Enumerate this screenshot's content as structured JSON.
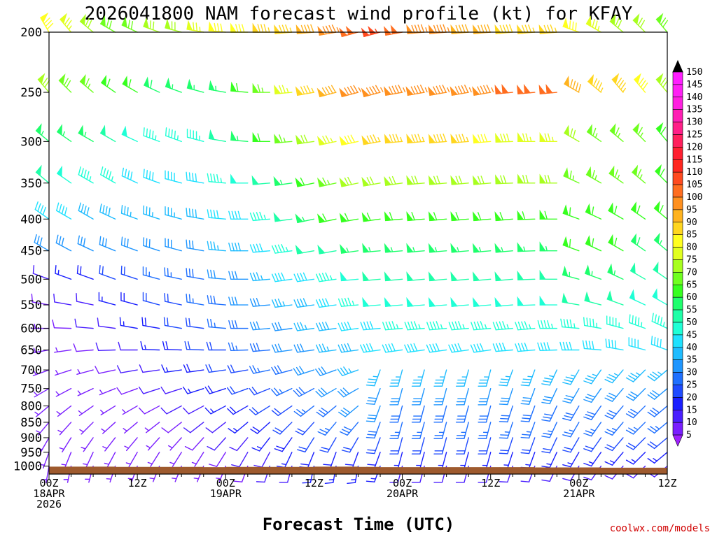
{
  "chart_data": {
    "type": "wind-barb",
    "title": "2026041800 NAM forecast wind profile (kt) for KFAY",
    "xlabel": "Forecast Time (UTC)",
    "credit": "coolwx.com/models",
    "y_ticks": [
      200,
      250,
      300,
      350,
      400,
      450,
      500,
      550,
      600,
      650,
      700,
      750,
      800,
      850,
      900,
      950,
      1000
    ],
    "y_range_hPa": [
      200,
      1030
    ],
    "x_range_hours": [
      0,
      84
    ],
    "x_ticks": [
      {
        "hour": 0,
        "labels": [
          "00Z",
          "18APR",
          "2026"
        ]
      },
      {
        "hour": 12,
        "labels": [
          "12Z"
        ]
      },
      {
        "hour": 24,
        "labels": [
          "00Z",
          "19APR"
        ]
      },
      {
        "hour": 36,
        "labels": [
          "12Z"
        ]
      },
      {
        "hour": 48,
        "labels": [
          "00Z",
          "20APR"
        ]
      },
      {
        "hour": 60,
        "labels": [
          "12Z"
        ]
      },
      {
        "hour": 72,
        "labels": [
          "00Z",
          "21APR"
        ]
      },
      {
        "hour": 84,
        "labels": [
          "12Z"
        ]
      }
    ],
    "barb_hours": [
      0,
      3,
      6,
      9,
      12,
      15,
      18,
      21,
      24,
      27,
      30,
      33,
      36,
      39,
      42,
      45,
      48,
      51,
      54,
      57,
      60,
      63,
      66,
      69,
      72,
      75,
      78,
      81,
      84
    ],
    "barb_levels": [
      200,
      250,
      300,
      350,
      400,
      450,
      500,
      550,
      600,
      650,
      700,
      750,
      800,
      850,
      900,
      950,
      1000
    ],
    "wind_rows": [
      {
        "level": 200,
        "speed": [
          80,
          75,
          70,
          68,
          68,
          70,
          72,
          75,
          80,
          82,
          85,
          85,
          90,
          95,
          100,
          105,
          100,
          95,
          95,
          90,
          90,
          88,
          85,
          85,
          80,
          75,
          72,
          70,
          68
        ],
        "dir": [
          330,
          320,
          310,
          300,
          295,
          290,
          285,
          280,
          275,
          270,
          270,
          265,
          265,
          260,
          255,
          255,
          260,
          265,
          265,
          265,
          265,
          265,
          265,
          265,
          290,
          300,
          310,
          315,
          320
        ]
      },
      {
        "level": 250,
        "speed": [
          70,
          68,
          65,
          62,
          60,
          58,
          55,
          55,
          55,
          60,
          65,
          75,
          85,
          90,
          95,
          95,
          95,
          95,
          95,
          95,
          95,
          100,
          100,
          100,
          90,
          85,
          85,
          80,
          70
        ],
        "dir": [
          320,
          315,
          310,
          305,
          300,
          295,
          290,
          285,
          280,
          275,
          270,
          265,
          260,
          255,
          255,
          255,
          260,
          260,
          260,
          260,
          260,
          265,
          265,
          265,
          300,
          310,
          320,
          320,
          320
        ]
      },
      {
        "level": 300,
        "speed": [
          55,
          55,
          55,
          52,
          48,
          45,
          45,
          45,
          50,
          55,
          60,
          65,
          70,
          75,
          80,
          85,
          85,
          85,
          88,
          85,
          80,
          78,
          75,
          75,
          70,
          65,
          65,
          65,
          60
        ],
        "dir": [
          310,
          305,
          300,
          300,
          295,
          290,
          290,
          285,
          280,
          275,
          270,
          265,
          262,
          258,
          258,
          260,
          265,
          265,
          265,
          265,
          265,
          268,
          270,
          270,
          300,
          305,
          310,
          315,
          320
        ]
      },
      {
        "level": 350,
        "speed": [
          50,
          48,
          45,
          45,
          42,
          40,
          40,
          42,
          45,
          48,
          50,
          55,
          60,
          65,
          70,
          70,
          70,
          70,
          70,
          70,
          70,
          70,
          70,
          70,
          65,
          65,
          65,
          65,
          62
        ],
        "dir": [
          310,
          305,
          300,
          300,
          295,
          290,
          285,
          280,
          275,
          270,
          265,
          262,
          258,
          258,
          258,
          260,
          262,
          265,
          265,
          265,
          265,
          268,
          270,
          270,
          295,
          300,
          305,
          310,
          315
        ]
      },
      {
        "level": 400,
        "speed": [
          40,
          40,
          38,
          38,
          36,
          35,
          35,
          38,
          40,
          42,
          45,
          50,
          55,
          60,
          62,
          62,
          62,
          62,
          62,
          62,
          62,
          62,
          60,
          60,
          62,
          62,
          60,
          60,
          60
        ],
        "dir": [
          305,
          300,
          300,
          295,
          290,
          288,
          285,
          280,
          275,
          270,
          265,
          262,
          258,
          258,
          260,
          262,
          265,
          265,
          265,
          265,
          265,
          265,
          268,
          270,
          290,
          295,
          300,
          305,
          310
        ]
      },
      {
        "level": 450,
        "speed": [
          30,
          32,
          32,
          32,
          32,
          32,
          30,
          32,
          35,
          38,
          40,
          45,
          50,
          52,
          55,
          55,
          55,
          55,
          55,
          55,
          55,
          55,
          55,
          55,
          60,
          60,
          60,
          58,
          55
        ],
        "dir": [
          300,
          298,
          295,
          292,
          290,
          288,
          285,
          280,
          275,
          270,
          265,
          262,
          260,
          260,
          262,
          265,
          265,
          265,
          265,
          265,
          265,
          265,
          268,
          270,
          290,
          295,
          300,
          305,
          310
        ]
      },
      {
        "level": 500,
        "speed": [
          10,
          15,
          18,
          20,
          22,
          25,
          25,
          28,
          30,
          32,
          35,
          40,
          42,
          45,
          48,
          50,
          50,
          50,
          50,
          50,
          52,
          52,
          52,
          52,
          55,
          55,
          55,
          52,
          50
        ],
        "dir": [
          290,
          290,
          290,
          290,
          288,
          285,
          282,
          280,
          275,
          270,
          265,
          262,
          262,
          262,
          265,
          265,
          265,
          265,
          265,
          265,
          265,
          265,
          268,
          270,
          285,
          290,
          295,
          300,
          305
        ]
      },
      {
        "level": 550,
        "speed": [
          8,
          10,
          12,
          15,
          18,
          20,
          22,
          25,
          28,
          30,
          32,
          35,
          38,
          40,
          45,
          48,
          48,
          48,
          48,
          48,
          48,
          48,
          48,
          48,
          50,
          50,
          50,
          48,
          48
        ],
        "dir": [
          280,
          280,
          282,
          285,
          285,
          285,
          282,
          280,
          275,
          270,
          265,
          262,
          262,
          262,
          265,
          265,
          265,
          265,
          265,
          265,
          265,
          265,
          268,
          270,
          280,
          285,
          290,
          295,
          300
        ]
      },
      {
        "level": 600,
        "speed": [
          5,
          8,
          10,
          12,
          15,
          18,
          20,
          22,
          25,
          28,
          30,
          32,
          35,
          38,
          40,
          42,
          45,
          45,
          45,
          45,
          45,
          45,
          45,
          45,
          45,
          45,
          45,
          45,
          45
        ],
        "dir": [
          270,
          272,
          275,
          278,
          280,
          280,
          280,
          278,
          275,
          270,
          265,
          262,
          262,
          262,
          262,
          265,
          265,
          265,
          265,
          265,
          265,
          265,
          265,
          270,
          275,
          280,
          285,
          290,
          295
        ]
      },
      {
        "level": 650,
        "speed": [
          5,
          6,
          8,
          10,
          12,
          15,
          18,
          20,
          22,
          25,
          28,
          30,
          32,
          35,
          38,
          40,
          40,
          40,
          40,
          40,
          40,
          40,
          40,
          40,
          40,
          40,
          40,
          40,
          40
        ],
        "dir": [
          260,
          262,
          265,
          268,
          270,
          272,
          272,
          272,
          270,
          268,
          265,
          262,
          262,
          262,
          262,
          262,
          262,
          262,
          262,
          262,
          262,
          265,
          265,
          268,
          270,
          275,
          280,
          285,
          290
        ]
      },
      {
        "level": 700,
        "speed": [
          5,
          5,
          6,
          8,
          10,
          12,
          15,
          18,
          20,
          22,
          25,
          28,
          30,
          32,
          35,
          35,
          35,
          35,
          35,
          35,
          35,
          35,
          35,
          35,
          35,
          35,
          35,
          35,
          35
        ],
        "dir": [
          250,
          252,
          255,
          258,
          260,
          262,
          262,
          262,
          262,
          260,
          258,
          255,
          252,
          250,
          250,
          200,
          195,
          195,
          195,
          195,
          195,
          200,
          200,
          205,
          210,
          215,
          220,
          225,
          230
        ]
      },
      {
        "level": 750,
        "speed": [
          5,
          5,
          5,
          6,
          8,
          10,
          12,
          15,
          18,
          20,
          22,
          25,
          28,
          30,
          32,
          32,
          30,
          30,
          30,
          30,
          30,
          30,
          30,
          30,
          30,
          30,
          30,
          30,
          30
        ],
        "dir": [
          240,
          242,
          245,
          248,
          250,
          252,
          252,
          252,
          252,
          250,
          248,
          245,
          242,
          240,
          240,
          200,
          195,
          195,
          195,
          195,
          195,
          198,
          200,
          205,
          210,
          215,
          220,
          225,
          230
        ]
      },
      {
        "level": 800,
        "speed": [
          5,
          5,
          5,
          5,
          6,
          8,
          10,
          12,
          15,
          18,
          20,
          22,
          25,
          28,
          30,
          30,
          28,
          28,
          28,
          28,
          28,
          28,
          28,
          28,
          28,
          28,
          28,
          28,
          28
        ],
        "dir": [
          230,
          232,
          235,
          238,
          240,
          242,
          242,
          242,
          242,
          240,
          238,
          235,
          232,
          230,
          230,
          200,
          195,
          195,
          195,
          195,
          195,
          198,
          200,
          205,
          210,
          215,
          220,
          225,
          230
        ]
      },
      {
        "level": 850,
        "speed": [
          5,
          5,
          5,
          5,
          5,
          6,
          8,
          10,
          12,
          15,
          18,
          20,
          22,
          25,
          28,
          28,
          25,
          25,
          25,
          25,
          25,
          25,
          25,
          25,
          25,
          25,
          25,
          25,
          25
        ],
        "dir": [
          220,
          222,
          225,
          228,
          230,
          232,
          232,
          232,
          232,
          230,
          228,
          225,
          222,
          220,
          220,
          200,
          195,
          195,
          195,
          195,
          195,
          198,
          200,
          205,
          210,
          215,
          220,
          225,
          230
        ]
      },
      {
        "level": 900,
        "speed": [
          5,
          5,
          5,
          5,
          5,
          5,
          6,
          8,
          10,
          12,
          15,
          18,
          20,
          22,
          22,
          22,
          20,
          20,
          20,
          20,
          20,
          20,
          20,
          20,
          20,
          20,
          20,
          20,
          20
        ],
        "dir": [
          210,
          212,
          215,
          218,
          220,
          222,
          222,
          222,
          222,
          220,
          218,
          215,
          212,
          210,
          210,
          200,
          195,
          195,
          195,
          195,
          195,
          198,
          200,
          205,
          210,
          215,
          220,
          225,
          230
        ]
      },
      {
        "level": 950,
        "speed": [
          5,
          5,
          5,
          5,
          5,
          5,
          5,
          6,
          8,
          10,
          12,
          15,
          18,
          18,
          18,
          18,
          15,
          15,
          15,
          15,
          15,
          15,
          15,
          15,
          15,
          15,
          15,
          15,
          15
        ],
        "dir": [
          200,
          202,
          205,
          208,
          210,
          212,
          212,
          212,
          212,
          210,
          208,
          205,
          202,
          200,
          200,
          200,
          195,
          195,
          195,
          195,
          195,
          198,
          200,
          205,
          210,
          215,
          220,
          225,
          230
        ]
      },
      {
        "level": 1000,
        "speed": [
          5,
          5,
          5,
          5,
          5,
          5,
          5,
          5,
          6,
          8,
          10,
          12,
          15,
          15,
          15,
          15,
          12,
          12,
          12,
          12,
          12,
          12,
          12,
          12,
          12,
          12,
          12,
          12,
          12
        ],
        "dir": [
          190,
          192,
          195,
          198,
          200,
          202,
          202,
          202,
          202,
          200,
          198,
          195,
          192,
          190,
          190,
          200,
          195,
          195,
          195,
          195,
          195,
          198,
          200,
          205,
          210,
          215,
          220,
          225,
          230
        ]
      }
    ],
    "terrain_pressure": [
      1002,
      1002,
      1002,
      1003,
      1003,
      1003,
      1003,
      1004,
      1003,
      1003,
      1003,
      1003,
      1002,
      1002,
      1003,
      1004,
      1004,
      1004,
      1004,
      1004,
      1004,
      1004,
      1005,
      1005,
      1005,
      1006,
      1006,
      1006,
      1007
    ],
    "terrain_color": "#9e5a2e",
    "colorbar": {
      "labels": [
        5,
        10,
        15,
        20,
        25,
        30,
        35,
        40,
        45,
        50,
        55,
        60,
        65,
        70,
        75,
        80,
        85,
        90,
        95,
        100,
        105,
        110,
        115,
        120,
        125,
        130,
        135,
        140,
        145,
        150
      ],
      "colors": [
        "#9f1fff",
        "#7a1fff",
        "#4a1fff",
        "#1a1fff",
        "#1f4bff",
        "#1f70ff",
        "#1f96ff",
        "#1fbcff",
        "#1fe1ff",
        "#1fffd6",
        "#1fffa8",
        "#1fff6d",
        "#36ff1f",
        "#6fff1f",
        "#a8ff1f",
        "#e1ff1f",
        "#ffff1f",
        "#ffd61f",
        "#ffb31f",
        "#ff901f",
        "#ff6d1f",
        "#ff4a1f",
        "#ff271f",
        "#ff1f30",
        "#ff1f5c",
        "#ff1f88",
        "#ff1fb4",
        "#ff1fe0",
        "#ff1ff4",
        "#ff1fff"
      ]
    }
  }
}
